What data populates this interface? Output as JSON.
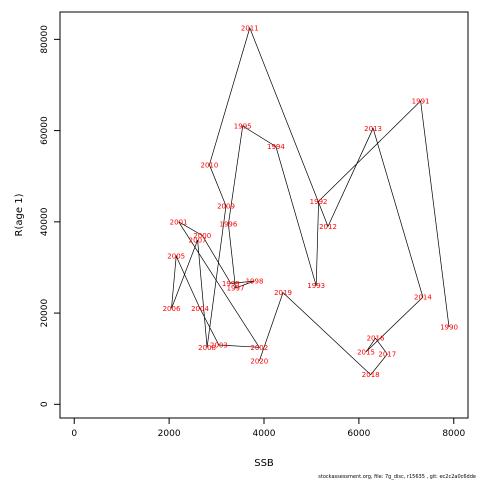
{
  "chart_data": {
    "type": "line",
    "xlabel": "SSB",
    "ylabel": "R(age 1)",
    "xlim": [
      -300,
      8300
    ],
    "ylim": [
      -3000,
      86000
    ],
    "xticks": [
      0,
      2000,
      4000,
      6000,
      8000
    ],
    "yticks": [
      0,
      20000,
      40000,
      60000,
      80000
    ],
    "line_color": "#000000",
    "label_color": "#ff0000",
    "series": [
      {
        "points": [
          {
            "label": "1990",
            "x": 7900,
            "y": 17000
          },
          {
            "label": "1991",
            "x": 7300,
            "y": 66500
          },
          {
            "label": "1992",
            "x": 5150,
            "y": 44500
          },
          {
            "label": "1993",
            "x": 5100,
            "y": 26000
          },
          {
            "label": "1994",
            "x": 4250,
            "y": 56500
          },
          {
            "label": "1995",
            "x": 3550,
            "y": 61000
          },
          {
            "label": "1996",
            "x": 3250,
            "y": 39500
          },
          {
            "label": "1997",
            "x": 3400,
            "y": 25500
          },
          {
            "label": "1998",
            "x": 3800,
            "y": 27000
          },
          {
            "label": "1999",
            "x": 3300,
            "y": 26500
          },
          {
            "label": "2000",
            "x": 2700,
            "y": 37000
          },
          {
            "label": "2001",
            "x": 2200,
            "y": 40000
          },
          {
            "label": "2002",
            "x": 3900,
            "y": 12500
          },
          {
            "label": "2003",
            "x": 3050,
            "y": 13000
          },
          {
            "label": "2004",
            "x": 2650,
            "y": 21000
          },
          {
            "label": "2005",
            "x": 2150,
            "y": 32500
          },
          {
            "label": "2006",
            "x": 2050,
            "y": 21000
          },
          {
            "label": "2007",
            "x": 2600,
            "y": 36000
          },
          {
            "label": "2008",
            "x": 2800,
            "y": 12500
          },
          {
            "label": "2009",
            "x": 3200,
            "y": 43500
          },
          {
            "label": "2010",
            "x": 2850,
            "y": 52500
          },
          {
            "label": "2011",
            "x": 3700,
            "y": 82500
          },
          {
            "label": "2012",
            "x": 5350,
            "y": 39000
          },
          {
            "label": "2013",
            "x": 6300,
            "y": 60500
          },
          {
            "label": "2014",
            "x": 7350,
            "y": 23500
          },
          {
            "label": "2015",
            "x": 6150,
            "y": 11500
          },
          {
            "label": "2016",
            "x": 6350,
            "y": 14500
          },
          {
            "label": "2017",
            "x": 6600,
            "y": 11000
          },
          {
            "label": "2018",
            "x": 6250,
            "y": 6500
          },
          {
            "label": "2019",
            "x": 4400,
            "y": 24500
          },
          {
            "label": "2020",
            "x": 3900,
            "y": 9500
          }
        ]
      }
    ]
  },
  "footer": "stockassessment.org, file: 7g_disc, r15635 , git: ec2c2a0c6dde"
}
